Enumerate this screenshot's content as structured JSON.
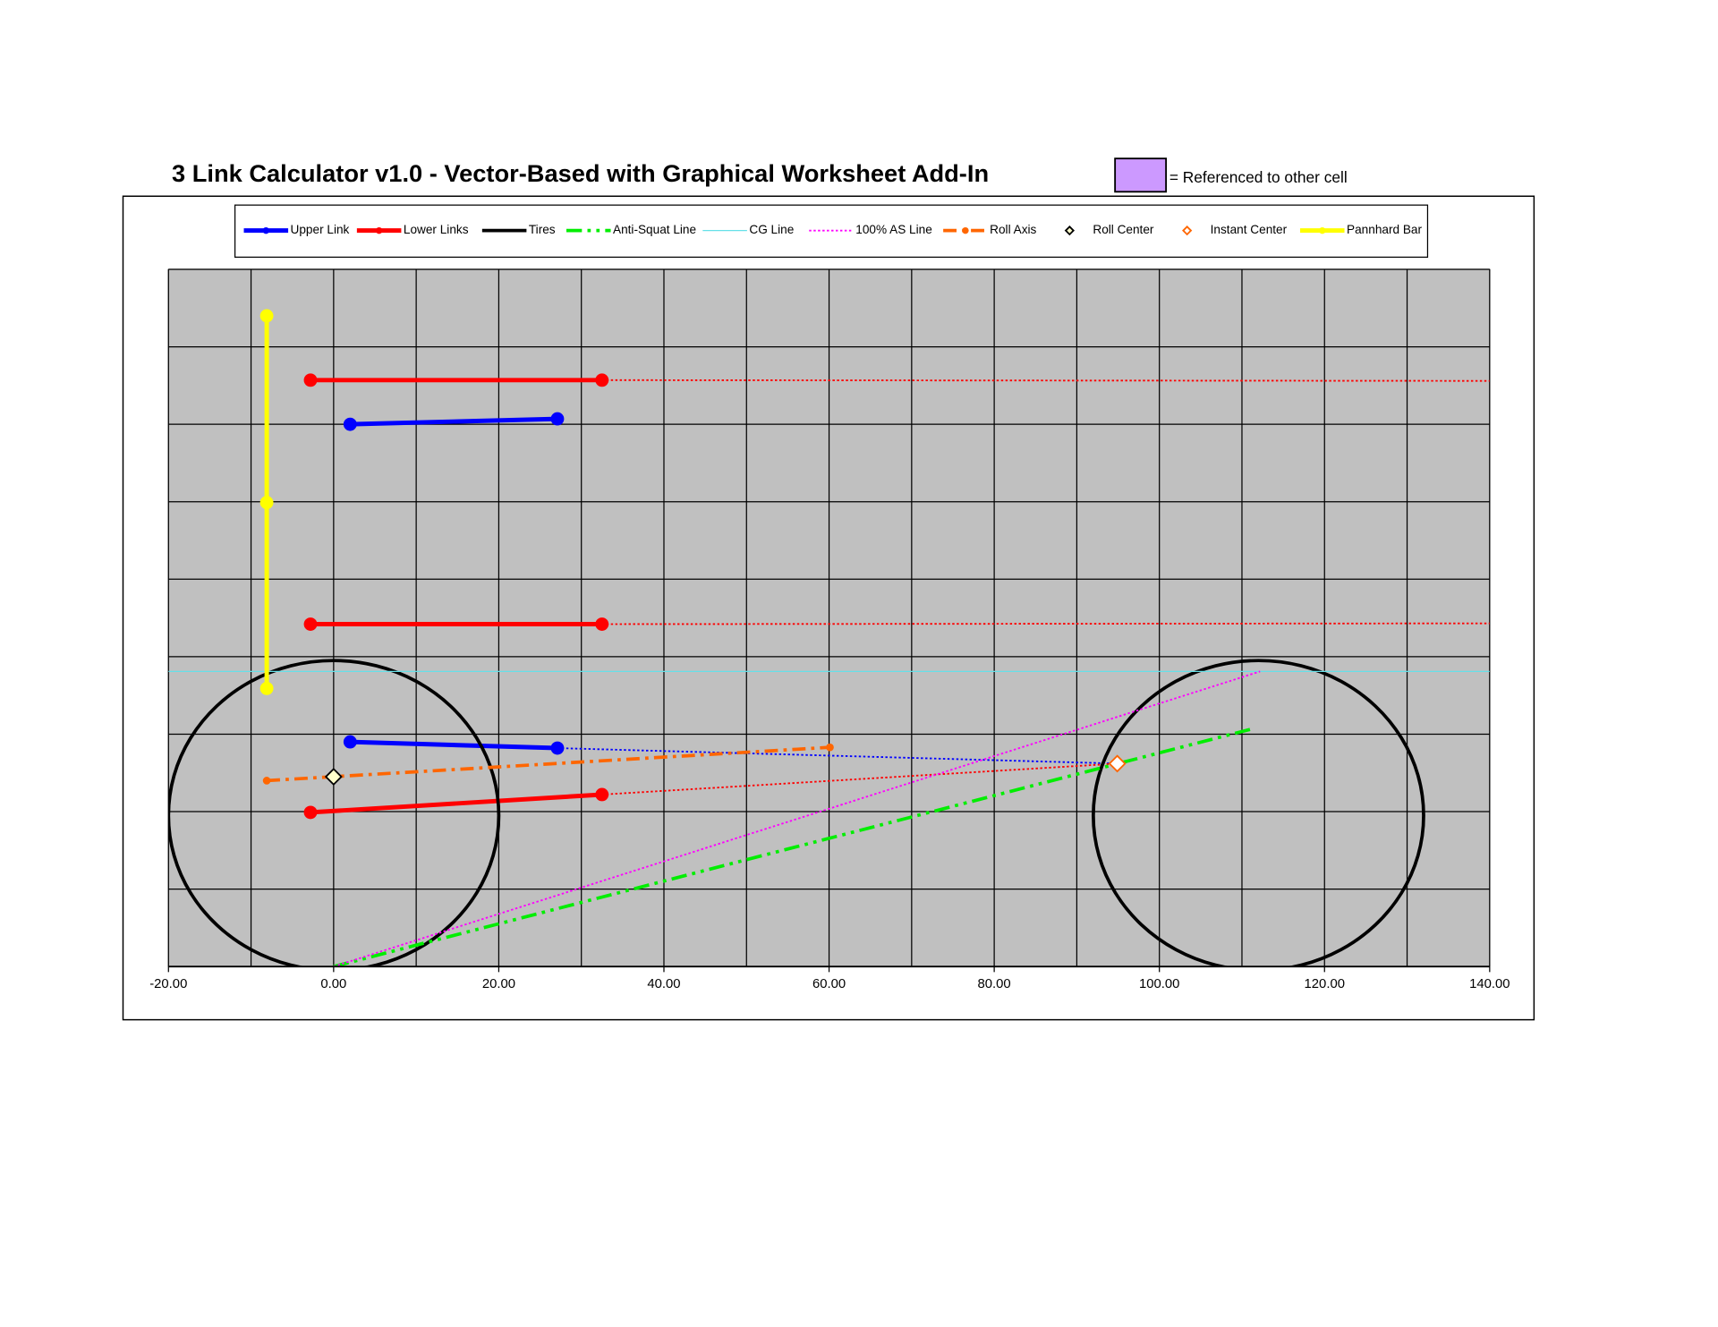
{
  "chart_data": {
    "type": "scatter",
    "title": "3 Link Calculator v1.0  -  Vector-Based with Graphical Worksheet Add-In",
    "annotation": "= Referenced to other cell",
    "xlim": [
      -20,
      140
    ],
    "ylim": [
      0,
      90
    ],
    "xticks": [
      {
        "value": -20,
        "label": "-20.00"
      },
      {
        "value": 0,
        "label": "0.00"
      },
      {
        "value": 20,
        "label": "20.00"
      },
      {
        "value": 40,
        "label": "40.00"
      },
      {
        "value": 60,
        "label": "60.00"
      },
      {
        "value": 80,
        "label": "80.00"
      },
      {
        "value": 100,
        "label": "100.00"
      },
      {
        "value": 120,
        "label": "120.00"
      },
      {
        "value": 140,
        "label": "140.00"
      }
    ],
    "xgrid": [
      -20,
      -10,
      0,
      10,
      20,
      30,
      40,
      50,
      60,
      70,
      80,
      90,
      100,
      110,
      120,
      130,
      140
    ],
    "ygrid": [
      0,
      10,
      20,
      30,
      40,
      50,
      60,
      70,
      80,
      90
    ],
    "grid": true,
    "series": [
      {
        "name": "Upper Link",
        "color": "#0000ff",
        "width": 4,
        "dash": "solid",
        "marker": "circle",
        "marker_size": 6,
        "x": [
          2.0,
          27.1,
          null,
          2.0,
          27.1
        ],
        "y": [
          70.0,
          70.7,
          null,
          29.0,
          28.2
        ]
      },
      {
        "name": "Lower Links",
        "color": "#ff0000",
        "width": 4,
        "dash": "solid",
        "marker": "circle",
        "marker_size": 6,
        "x": [
          -2.8,
          32.5,
          null,
          -2.8,
          32.5,
          null,
          -2.8,
          32.5
        ],
        "y": [
          75.7,
          75.7,
          null,
          44.2,
          44.2,
          null,
          19.9,
          22.2
        ]
      },
      {
        "name": "Tires",
        "color": "#000000",
        "width": 3,
        "dash": "solid",
        "smooth": true,
        "x": [
          20,
          19.32,
          17.32,
          14.14,
          10,
          5.18,
          0,
          -5.18,
          -10,
          -14.14,
          -17.32,
          -19.32,
          -20,
          -19.32,
          -17.32,
          -14.14,
          -10,
          -5.18,
          0,
          5.18,
          10,
          14.14,
          17.32,
          19.32,
          20,
          null,
          132,
          131.32,
          129.32,
          126.14,
          122,
          117.18,
          112,
          106.82,
          102,
          97.86,
          94.68,
          92.68,
          92,
          92.68,
          94.68,
          97.86,
          102,
          106.82,
          112,
          117.18,
          122,
          126.14,
          129.32,
          131.32,
          132
        ],
        "y": [
          19.5,
          24.68,
          29.5,
          33.64,
          36.82,
          38.82,
          39.5,
          38.82,
          36.82,
          33.64,
          29.5,
          24.68,
          19.5,
          14.32,
          9.5,
          5.36,
          2.18,
          0.18,
          -0.5,
          0.18,
          2.18,
          5.36,
          9.5,
          14.32,
          19.5,
          null,
          19.5,
          24.68,
          29.5,
          33.64,
          36.82,
          38.82,
          39.5,
          38.82,
          36.82,
          33.64,
          29.5,
          24.68,
          19.5,
          14.32,
          9.5,
          5.36,
          2.18,
          0.18,
          -0.5,
          0.18,
          2.18,
          5.36,
          9.5,
          14.32,
          19.5
        ]
      },
      {
        "name": "Anti-Squat Line",
        "color": "#00ee00",
        "width": 3,
        "dash": "dashdotdot",
        "x": [
          0,
          111.3
        ],
        "y": [
          0,
          30.7
        ]
      },
      {
        "name": "CG Line",
        "color": "#66e0e8",
        "width": 1,
        "dash": "solid",
        "x": [
          -20,
          140
        ],
        "y": [
          38.1,
          38.1
        ]
      },
      {
        "name": "100% AS Line",
        "color": "#ff00ff",
        "width": 1.5,
        "dash": "dot",
        "x": [
          0,
          112.2
        ],
        "y": [
          0,
          38.1
        ]
      },
      {
        "name": "Roll Axis",
        "color": "#ff6600",
        "width": 3,
        "dash": "dashdot",
        "marker": "circle",
        "marker_size": 3.5,
        "x": [
          -8.1,
          60.1
        ],
        "y": [
          24.0,
          28.3
        ]
      },
      {
        "name": "Roll Center",
        "color": "#000000",
        "line": false,
        "marker": "diamond",
        "marker_size": 7,
        "marker_fill": "#ffffcc",
        "x": [
          0
        ],
        "y": [
          24.5
        ]
      },
      {
        "name": "Instant Center",
        "color": "#ff6600",
        "line": false,
        "marker": "diamond",
        "marker_size": 7,
        "marker_fill": "#ffffff",
        "x": [
          94.9
        ],
        "y": [
          26.2
        ]
      },
      {
        "name": "Pannhard Bar",
        "color": "#ffff00",
        "width": 4,
        "dash": "solid",
        "marker": "circle",
        "marker_size": 6,
        "x": [
          -8.1,
          -8.1,
          -8.1
        ],
        "y": [
          84.0,
          59.9,
          35.9
        ]
      },
      {
        "color": "#0000ff",
        "width": 1.5,
        "dash": "dot",
        "x": [
          27.1,
          94.9
        ],
        "y": [
          28.2,
          26.2
        ]
      },
      {
        "color": "#ff0000",
        "width": 1.5,
        "dash": "dot",
        "x": [
          32.5,
          140,
          null,
          32.5,
          140,
          null,
          32.5,
          94.9
        ],
        "y": [
          75.7,
          75.6,
          null,
          44.2,
          44.3,
          null,
          22.2,
          26.2
        ]
      }
    ]
  }
}
